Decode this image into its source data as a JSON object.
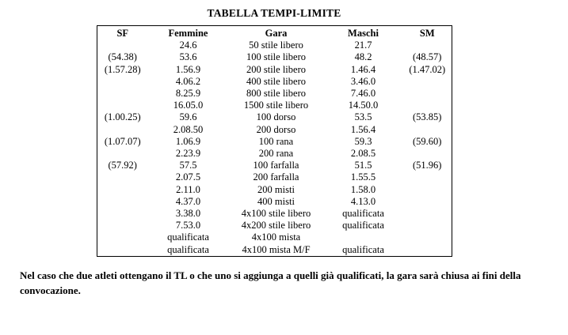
{
  "title": "TABELLA TEMPI-LIMITE",
  "table": {
    "headers": [
      "SF",
      "Femmine",
      "Gara",
      "Maschi",
      "SM"
    ],
    "rows": [
      [
        "",
        "24.6",
        "50 stile libero",
        "21.7",
        ""
      ],
      [
        "(54.38)",
        "53.6",
        "100 stile libero",
        "48.2",
        "(48.57)"
      ],
      [
        "(1.57.28)",
        "1.56.9",
        "200 stile libero",
        "1.46.4",
        "(1.47.02)"
      ],
      [
        "",
        "4.06.2",
        "400 stile libero",
        "3.46.0",
        ""
      ],
      [
        "",
        "8.25.9",
        "800 stile libero",
        "7.46.0",
        ""
      ],
      [
        "",
        "16.05.0",
        "1500 stile libero",
        "14.50.0",
        ""
      ],
      [
        "(1.00.25)",
        "59.6",
        "100 dorso",
        "53.5",
        "(53.85)"
      ],
      [
        "",
        "2.08.50",
        "200 dorso",
        "1.56.4",
        ""
      ],
      [
        "(1.07.07)",
        "1.06.9",
        "100 rana",
        "59.3",
        "(59.60)"
      ],
      [
        "",
        "2.23.9",
        "200 rana",
        "2.08.5",
        ""
      ],
      [
        "(57.92)",
        "57.5",
        "100 farfalla",
        "51.5",
        "(51.96)"
      ],
      [
        "",
        "2.07.5",
        "200 farfalla",
        "1.55.5",
        ""
      ],
      [
        "",
        "2.11.0",
        "200 misti",
        "1.58.0",
        ""
      ],
      [
        "",
        "4.37.0",
        "400 misti",
        "4.13.0",
        ""
      ],
      [
        "",
        "3.38.0",
        "4x100 stile libero",
        "qualificata",
        ""
      ],
      [
        "",
        "7.53.0",
        "4x200 stile libero",
        "qualificata",
        ""
      ],
      [
        "",
        "qualificata",
        "4x100 mista",
        "",
        ""
      ],
      [
        "",
        "qualificata",
        "4x100 mista M/F",
        "qualificata",
        ""
      ]
    ]
  },
  "note": "Nel caso che due atleti ottengano il TL o che uno si aggiunga a quelli già qualificati, la gara sarà chiusa ai fini della convocazione."
}
